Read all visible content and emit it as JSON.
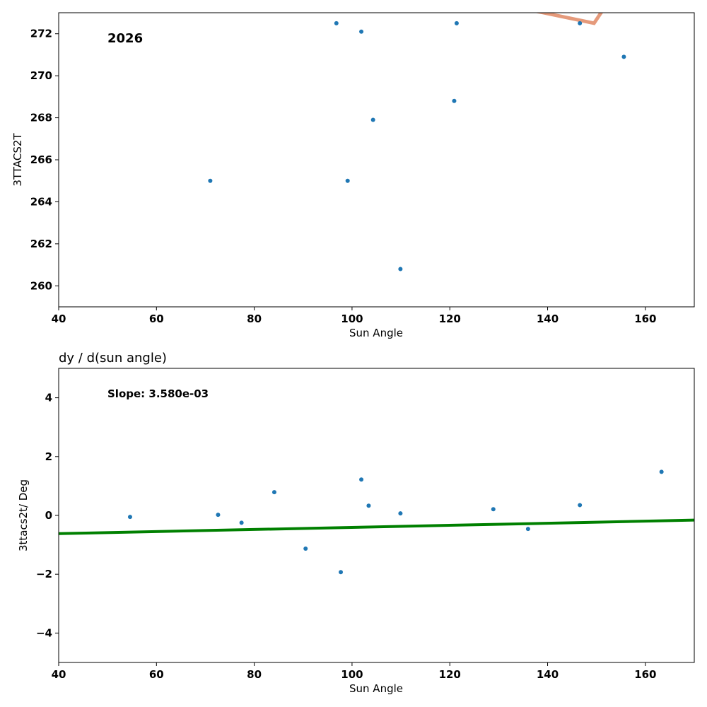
{
  "chart_data": [
    {
      "type": "scatter",
      "title": "",
      "xlabel": "Sun Angle",
      "ylabel": "3TTACS2T",
      "xlim": [
        40,
        170
      ],
      "ylim": [
        259,
        273
      ],
      "xticks": [
        "40",
        "60",
        "80",
        "100",
        "120",
        "140",
        "160"
      ],
      "yticks": [
        "260",
        "262",
        "264",
        "266",
        "268",
        "270",
        "272"
      ],
      "annotation": "2026",
      "grid": false,
      "points": [
        {
          "x": 71.0,
          "y": 265.0
        },
        {
          "x": 96.8,
          "y": 272.5
        },
        {
          "x": 99.1,
          "y": 265.0
        },
        {
          "x": 101.9,
          "y": 272.1
        },
        {
          "x": 104.3,
          "y": 267.9
        },
        {
          "x": 109.9,
          "y": 260.8
        },
        {
          "x": 120.9,
          "y": 268.8
        },
        {
          "x": 121.4,
          "y": 272.5
        },
        {
          "x": 146.6,
          "y": 272.5
        },
        {
          "x": 155.6,
          "y": 270.9
        }
      ],
      "trend_line": {
        "color": "#e59a7b",
        "points": [
          {
            "x": 135.0,
            "y": 273.2
          },
          {
            "x": 149.5,
            "y": 272.5
          },
          {
            "x": 151.5,
            "y": 273.2
          }
        ]
      },
      "point_color": "#1f77b4"
    },
    {
      "type": "scatter",
      "title": "dy / d(sun angle)",
      "xlabel": "Sun Angle",
      "ylabel": "3ttacs2t/ Deg",
      "xlim": [
        40,
        170
      ],
      "ylim": [
        -5,
        5
      ],
      "xticks": [
        "40",
        "60",
        "80",
        "100",
        "120",
        "140",
        "160"
      ],
      "yticks": [
        "4",
        "2",
        "0",
        "−2",
        "−4"
      ],
      "annotation": "Slope: 3.580e-03",
      "grid": false,
      "points": [
        {
          "x": 54.6,
          "y": -0.05
        },
        {
          "x": 72.6,
          "y": 0.02
        },
        {
          "x": 77.4,
          "y": -0.25
        },
        {
          "x": 84.1,
          "y": 0.79
        },
        {
          "x": 90.5,
          "y": -1.13
        },
        {
          "x": 97.7,
          "y": -1.93
        },
        {
          "x": 101.9,
          "y": 1.22
        },
        {
          "x": 103.4,
          "y": 0.33
        },
        {
          "x": 109.9,
          "y": 0.07
        },
        {
          "x": 128.9,
          "y": 0.21
        },
        {
          "x": 136.0,
          "y": -0.46
        },
        {
          "x": 146.6,
          "y": 0.35
        },
        {
          "x": 163.3,
          "y": 1.48
        }
      ],
      "fit_line": {
        "color": "#008000",
        "points": [
          {
            "x": 40,
            "y": -0.62
          },
          {
            "x": 170,
            "y": -0.16
          }
        ]
      },
      "point_color": "#1f77b4"
    }
  ]
}
